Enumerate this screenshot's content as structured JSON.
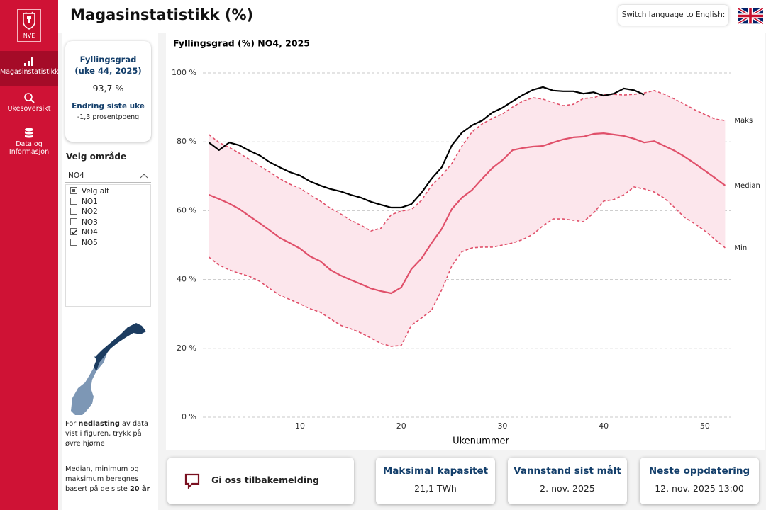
{
  "sidebar": {
    "logo": "NVE",
    "nav": [
      {
        "label": "Magasinstatistikk",
        "active": true
      },
      {
        "label": "Ukesoversikt",
        "active": false
      },
      {
        "label": "Data og Informasjon",
        "active": false
      }
    ]
  },
  "header": {
    "title": "Magasinstatistikk (%)",
    "language_button": "Switch language to English:"
  },
  "kpi": {
    "title": "Fyllingsgrad (uke 44, 2025)",
    "value": "93,7 %",
    "change_title": "Endring siste uke",
    "change_value": "-1,3 prosentpoeng"
  },
  "area_filter": {
    "title": "Velg område",
    "selected": "NO4",
    "options": [
      {
        "label": "Velg alt",
        "state": "partial"
      },
      {
        "label": "NO1",
        "state": "unchecked"
      },
      {
        "label": "NO2",
        "state": "unchecked"
      },
      {
        "label": "NO3",
        "state": "unchecked"
      },
      {
        "label": "NO4",
        "state": "checked"
      },
      {
        "label": "NO5",
        "state": "unchecked"
      }
    ]
  },
  "notes": {
    "download": [
      "For ",
      "nedlasting",
      " av data vist i figuren, trykk på øvre hjørne"
    ],
    "method": [
      "Median, minimum og maksimum beregnes basert på de siste ",
      "20 år"
    ]
  },
  "feedback": "Gi oss tilbakemelding",
  "cards": [
    {
      "title": "Maksimal kapasitet",
      "value": "21,1 TWh"
    },
    {
      "title": "Vannstand sist målt",
      "value": "2. nov. 2025"
    },
    {
      "title": "Neste oppdatering",
      "value": "12. nov. 2025 13:00"
    }
  ],
  "chart_data": {
    "type": "line",
    "title": "Fyllingsgrad (%) NO4, 2025",
    "x_label": "Ukenummer",
    "x": [
      1,
      2,
      3,
      4,
      5,
      6,
      7,
      8,
      9,
      10,
      11,
      12,
      13,
      14,
      15,
      16,
      17,
      18,
      19,
      20,
      21,
      22,
      23,
      24,
      25,
      26,
      27,
      28,
      29,
      30,
      31,
      32,
      33,
      34,
      35,
      36,
      37,
      38,
      39,
      40,
      41,
      42,
      43,
      44,
      45,
      46,
      47,
      48,
      49,
      50,
      51,
      52
    ],
    "xlim": [
      0.4,
      52.6
    ],
    "xticks": [
      10,
      20,
      30,
      40,
      50
    ],
    "ylim": [
      0,
      100
    ],
    "yticks": [
      {
        "value": 0,
        "label": "0 %"
      },
      {
        "value": 20,
        "label": "20 %"
      },
      {
        "value": 40,
        "label": "40 %"
      },
      {
        "value": 60,
        "label": "60 %"
      },
      {
        "value": 80,
        "label": "80 %"
      },
      {
        "value": 100,
        "label": "100 %"
      }
    ],
    "grid": true,
    "band_color": "#fce6ec",
    "series": [
      {
        "color": "#000000",
        "style": "solid",
        "values": [
          79.8,
          77.6,
          79.8,
          79.0,
          77.4,
          76.1,
          74.1,
          72.6,
          71.2,
          70.2,
          68.5,
          67.3,
          66.3,
          65.6,
          64.6,
          63.8,
          62.6,
          61.7,
          60.9,
          60.9,
          61.9,
          65.2,
          69.3,
          72.6,
          79.0,
          82.7,
          84.8,
          86.2,
          88.5,
          89.9,
          91.8,
          93.6,
          95.1,
          95.9,
          94.9,
          94.7,
          94.7,
          94.0,
          94.4,
          93.4,
          94.0,
          95.5,
          95.0,
          93.7,
          null,
          null,
          null,
          null,
          null,
          null,
          null,
          null
        ]
      },
      {
        "name": "Maks",
        "color": "#e0506a",
        "style": "dashed",
        "values": [
          82.1,
          79.8,
          78.4,
          76.7,
          74.9,
          73.0,
          71.2,
          69.3,
          67.7,
          66.5,
          64.6,
          62.8,
          60.7,
          59.1,
          57.2,
          55.8,
          54.1,
          54.9,
          58.8,
          59.9,
          60.3,
          63.0,
          67.3,
          70.2,
          73.7,
          78.8,
          82.9,
          85.2,
          86.8,
          88.1,
          90.1,
          91.8,
          92.8,
          92.4,
          91.4,
          90.5,
          90.9,
          92.6,
          92.8,
          93.8,
          93.8,
          93.6,
          93.8,
          94.2,
          94.9,
          93.8,
          92.4,
          90.9,
          89.3,
          87.9,
          86.6,
          86.2
        ]
      },
      {
        "name": "Median",
        "color": "#e0506a",
        "style": "solid",
        "values": [
          64.6,
          63.4,
          62.1,
          60.5,
          58.4,
          56.4,
          54.3,
          52.1,
          50.6,
          49.0,
          46.7,
          45.3,
          42.8,
          41.2,
          39.9,
          38.7,
          37.4,
          36.6,
          36.0,
          37.7,
          43.0,
          46.1,
          50.6,
          54.7,
          60.5,
          63.8,
          66.0,
          69.3,
          72.4,
          74.7,
          77.6,
          78.2,
          78.6,
          78.8,
          79.8,
          80.7,
          81.3,
          81.5,
          82.3,
          82.5,
          82.1,
          81.7,
          80.9,
          79.8,
          80.2,
          78.8,
          77.4,
          75.7,
          73.7,
          71.6,
          69.5,
          67.3
        ]
      },
      {
        "name": "Min",
        "color": "#e0506a",
        "style": "dashed",
        "values": [
          46.5,
          44.2,
          42.8,
          41.8,
          40.9,
          39.5,
          37.4,
          35.4,
          34.2,
          32.9,
          31.5,
          30.5,
          28.6,
          26.7,
          25.7,
          24.5,
          23.0,
          21.4,
          20.6,
          20.8,
          26.7,
          28.8,
          31.1,
          37.0,
          44.0,
          48.1,
          49.2,
          49.4,
          49.4,
          50.0,
          50.6,
          51.6,
          53.1,
          55.6,
          57.6,
          57.6,
          57.2,
          56.8,
          59.3,
          62.8,
          63.2,
          64.6,
          66.9,
          66.3,
          65.4,
          63.6,
          60.9,
          58.0,
          56.2,
          54.1,
          51.6,
          49.2
        ]
      }
    ]
  }
}
